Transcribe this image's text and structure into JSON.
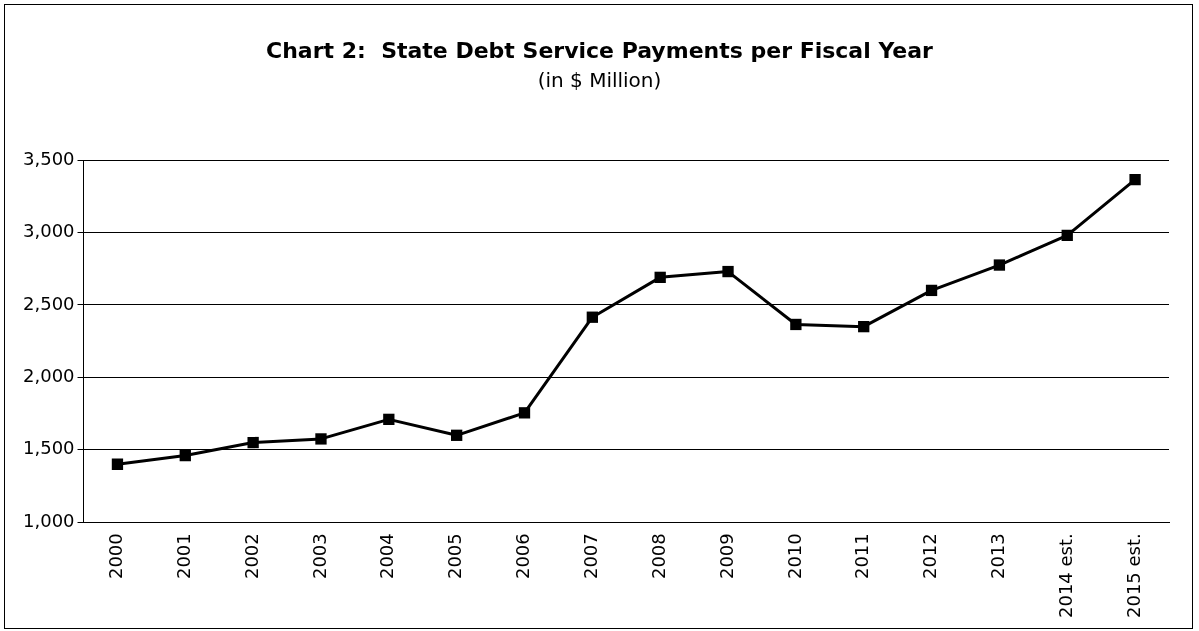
{
  "chart_data": {
    "type": "line",
    "title": "Chart 2:  State Debt Service Payments per Fiscal Year",
    "subtitle": "(in $ Million)",
    "categories": [
      "2000",
      "2001",
      "2002",
      "2003",
      "2004",
      "2005",
      "2006",
      "2007",
      "2008",
      "2009",
      "2010",
      "2011",
      "2012",
      "2013",
      "2014 est.",
      "2015 est."
    ],
    "series": [
      {
        "color": "#000000",
        "values": [
          1400,
          1460,
          1550,
          1575,
          1710,
          1600,
          1755,
          2415,
          2690,
          2730,
          2365,
          2350,
          2600,
          2775,
          2980,
          3365
        ]
      }
    ],
    "ylim": [
      1000,
      3500
    ],
    "yticks": [
      {
        "value": 1000,
        "label": "1,000"
      },
      {
        "value": 1500,
        "label": "1,500"
      },
      {
        "value": 2000,
        "label": "2,000"
      },
      {
        "value": 2500,
        "label": "2,500"
      },
      {
        "value": 3000,
        "label": "3,000"
      },
      {
        "value": 3500,
        "label": "3,500"
      }
    ],
    "grid": "y",
    "legend": false,
    "marker": "square",
    "line_style": "solid"
  }
}
